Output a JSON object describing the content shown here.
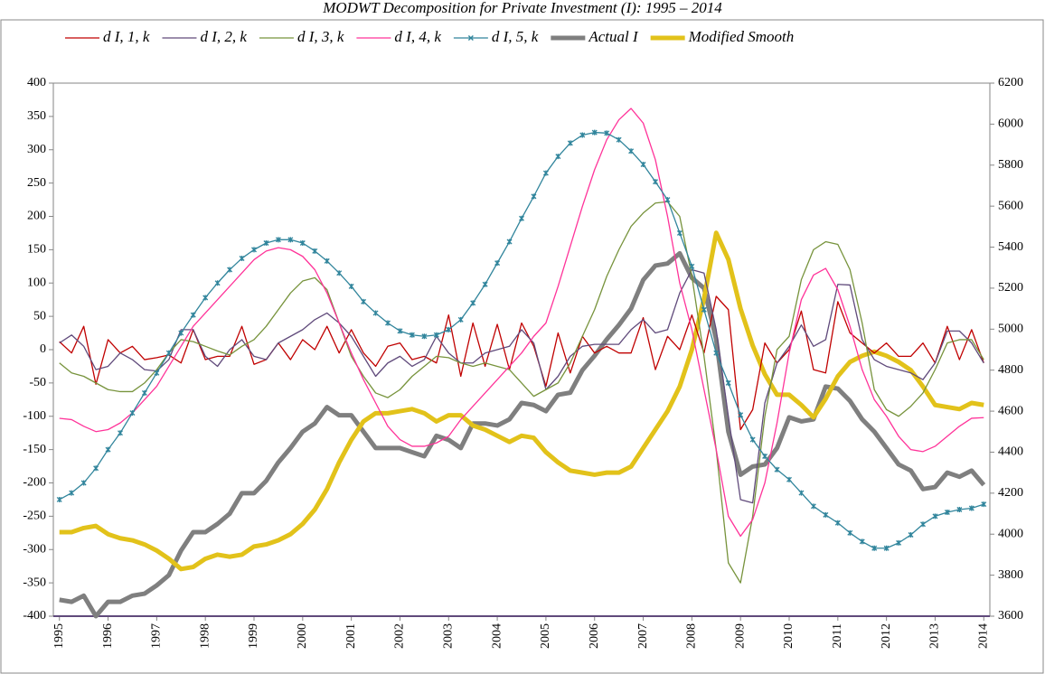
{
  "chart_data": {
    "type": "line",
    "title": "MODWT Decomposition for Private Investment (I): 1995 – 2014",
    "categories": [
      "1995",
      null,
      null,
      null,
      "1996",
      null,
      null,
      null,
      "1997",
      null,
      null,
      null,
      "1998",
      null,
      null,
      null,
      "1999",
      null,
      null,
      null,
      "2000",
      null,
      null,
      null,
      "2001",
      null,
      null,
      null,
      "2002",
      null,
      null,
      null,
      "2003",
      null,
      null,
      null,
      "2004",
      null,
      null,
      null,
      "2005",
      null,
      null,
      null,
      "2006",
      null,
      null,
      null,
      "2007",
      null,
      null,
      null,
      "2008",
      null,
      null,
      null,
      "2009",
      null,
      null,
      null,
      "2010",
      null,
      null,
      null,
      "2011",
      null,
      null,
      null,
      "2012",
      null,
      null,
      null,
      "2013",
      null,
      null,
      null,
      "2014"
    ],
    "ylim": [
      -400,
      400
    ],
    "yticks": [
      -400,
      -350,
      -300,
      -250,
      -200,
      -150,
      -100,
      -50,
      0,
      50,
      100,
      150,
      200,
      250,
      300,
      350,
      400
    ],
    "y2lim": [
      3600,
      6200
    ],
    "y2ticks": [
      3600,
      3800,
      4000,
      4200,
      4400,
      4600,
      4800,
      5000,
      5200,
      5400,
      5600,
      5800,
      6000,
      6200
    ],
    "grid": false,
    "legend": "top",
    "series": [
      {
        "name": "d I, 1, k",
        "color": "#c00000",
        "values": [
          12,
          -5,
          35,
          -52,
          15,
          -5,
          5,
          -15,
          -12,
          -8,
          -20,
          30,
          -15,
          -10,
          -10,
          35,
          -22,
          -15,
          10,
          -15,
          15,
          0,
          35,
          -5,
          30,
          -5,
          -25,
          5,
          10,
          -15,
          -10,
          -20,
          52,
          -40,
          40,
          -25,
          38,
          -30,
          40,
          5,
          -55,
          25,
          -35,
          20,
          -5,
          5,
          -5,
          -5,
          48,
          -30,
          20,
          0,
          52,
          -5,
          80,
          60,
          -120,
          -90,
          10,
          -20,
          0,
          58,
          -30,
          -35,
          72,
          25,
          10,
          -5,
          10,
          -10,
          -10,
          10,
          -20,
          35,
          -15,
          30,
          -20
        ]
      },
      {
        "name": "d I, 2, k",
        "color": "#604a7b",
        "values": [
          10,
          22,
          5,
          -30,
          -25,
          -5,
          -15,
          -30,
          -32,
          -15,
          30,
          30,
          -10,
          -25,
          0,
          15,
          -10,
          -15,
          10,
          20,
          30,
          45,
          55,
          40,
          20,
          -10,
          -40,
          -20,
          -10,
          -25,
          -15,
          20,
          -5,
          -20,
          -20,
          -5,
          0,
          5,
          30,
          10,
          -60,
          -40,
          -10,
          5,
          8,
          8,
          8,
          30,
          45,
          25,
          30,
          85,
          120,
          115,
          30,
          -100,
          -225,
          -230,
          -80,
          -20,
          5,
          37,
          5,
          15,
          98,
          97,
          15,
          -15,
          -25,
          -30,
          -35,
          -45,
          -20,
          28,
          28,
          10,
          -20
        ]
      },
      {
        "name": "d I, 3, k",
        "color": "#77933c",
        "values": [
          -20,
          -35,
          -40,
          -50,
          -60,
          -63,
          -63,
          -50,
          -30,
          -5,
          15,
          12,
          5,
          -2,
          -8,
          5,
          15,
          35,
          60,
          85,
          103,
          108,
          90,
          40,
          -10,
          -40,
          -65,
          -72,
          -60,
          -40,
          -25,
          -10,
          -12,
          -20,
          -25,
          -20,
          -25,
          -30,
          -50,
          -70,
          -60,
          -50,
          -20,
          20,
          60,
          110,
          150,
          185,
          205,
          220,
          222,
          200,
          110,
          -10,
          -150,
          -320,
          -350,
          -250,
          -100,
          0,
          20,
          105,
          150,
          162,
          158,
          120,
          40,
          -60,
          -90,
          -100,
          -85,
          -65,
          -30,
          10,
          15,
          15,
          -15
        ]
      },
      {
        "name": "d I, 4, k",
        "color": "#ff3399",
        "values": [
          -103,
          -105,
          -115,
          -123,
          -120,
          -110,
          -95,
          -75,
          -55,
          -25,
          5,
          35,
          55,
          75,
          95,
          115,
          135,
          148,
          153,
          150,
          140,
          120,
          85,
          40,
          -5,
          -45,
          -80,
          -115,
          -135,
          -145,
          -145,
          -140,
          -130,
          -105,
          -85,
          -65,
          -45,
          -25,
          -5,
          20,
          40,
          95,
          155,
          215,
          270,
          315,
          345,
          362,
          340,
          285,
          200,
          100,
          30,
          -60,
          -150,
          -250,
          -280,
          -255,
          -200,
          -110,
          -5,
          75,
          112,
          122,
          90,
          35,
          -30,
          -75,
          -100,
          -130,
          -150,
          -153,
          -145,
          -130,
          -115,
          -103,
          -102
        ]
      },
      {
        "name": "d I, 5, k",
        "color": "#31859c",
        "marker": "x",
        "values": [
          -225,
          -215,
          -200,
          -178,
          -150,
          -125,
          -95,
          -65,
          -35,
          -5,
          25,
          52,
          78,
          100,
          120,
          137,
          150,
          160,
          165,
          165,
          160,
          148,
          133,
          115,
          95,
          72,
          55,
          40,
          28,
          22,
          20,
          22,
          30,
          45,
          70,
          98,
          130,
          162,
          197,
          230,
          265,
          290,
          310,
          322,
          326,
          325,
          315,
          298,
          278,
          252,
          225,
          175,
          125,
          60,
          -5,
          -50,
          -98,
          -135,
          -160,
          -180,
          -195,
          -215,
          -235,
          -248,
          -260,
          -275,
          -288,
          -298,
          -298,
          -290,
          -278,
          -262,
          -250,
          -244,
          -240,
          -238,
          -232
        ]
      },
      {
        "name": "Actual I",
        "color": "#7f7f7f",
        "axis": "y2",
        "values": [
          3680,
          3670,
          3700,
          3600,
          3670,
          3670,
          3700,
          3710,
          3750,
          3800,
          3920,
          4010,
          4010,
          4050,
          4100,
          4200,
          4200,
          4260,
          4350,
          4420,
          4500,
          4540,
          4620,
          4580,
          4580,
          4500,
          4420,
          4420,
          4420,
          4400,
          4380,
          4480,
          4460,
          4420,
          4540,
          4540,
          4530,
          4560,
          4640,
          4630,
          4600,
          4680,
          4690,
          4800,
          4870,
          4950,
          5020,
          5100,
          5240,
          5310,
          5320,
          5370,
          5250,
          5200,
          4950,
          4500,
          4290,
          4330,
          4340,
          4420,
          4570,
          4550,
          4560,
          4720,
          4710,
          4650,
          4560,
          4500,
          4420,
          4340,
          4310,
          4220,
          4230,
          4300,
          4280,
          4310,
          4240
        ]
      },
      {
        "name": "Modified Smooth",
        "color": "#e2c21a",
        "axis": "y2",
        "values": [
          4010,
          4010,
          4030,
          4040,
          4000,
          3980,
          3970,
          3950,
          3920,
          3880,
          3830,
          3840,
          3880,
          3900,
          3890,
          3900,
          3940,
          3950,
          3970,
          4000,
          4050,
          4120,
          4220,
          4350,
          4460,
          4550,
          4590,
          4590,
          4600,
          4610,
          4590,
          4550,
          4580,
          4580,
          4530,
          4510,
          4480,
          4450,
          4480,
          4470,
          4400,
          4350,
          4310,
          4300,
          4290,
          4300,
          4300,
          4330,
          4420,
          4510,
          4600,
          4720,
          4900,
          5150,
          5470,
          5340,
          5100,
          4920,
          4780,
          4680,
          4680,
          4630,
          4570,
          4660,
          4770,
          4840,
          4870,
          4890,
          4870,
          4840,
          4800,
          4720,
          4630,
          4620,
          4610,
          4640,
          4630
        ]
      }
    ]
  }
}
